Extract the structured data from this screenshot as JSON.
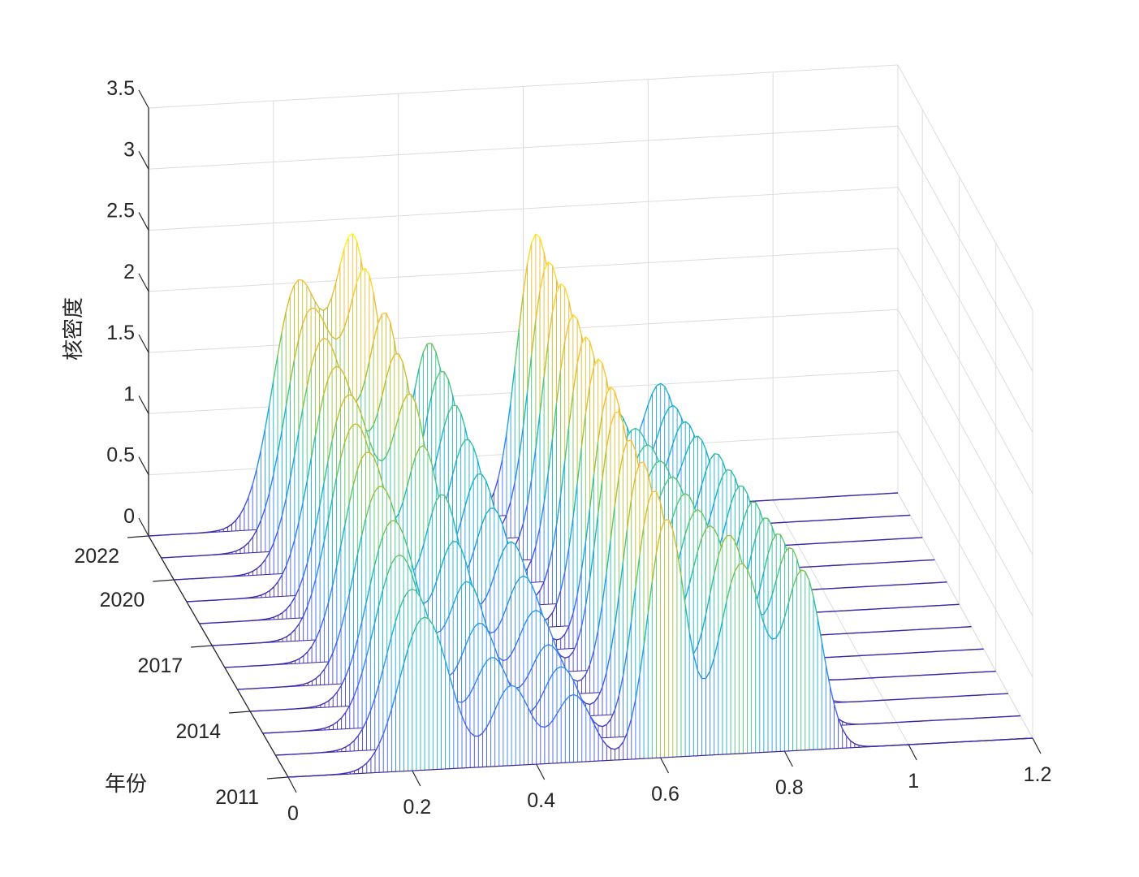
{
  "chart_data": {
    "type": "3d-surface",
    "style": "waterfall-mesh",
    "xlabel": "",
    "ylabel": "年份",
    "zlabel": "核密度",
    "xlim": [
      0,
      1.2
    ],
    "zlim": [
      0,
      3.5
    ],
    "x_ticks": [
      "0",
      "0.2",
      "0.4",
      "0.6",
      "0.8",
      "1",
      "1.2"
    ],
    "y_ticks": [
      "2011",
      "2014",
      "2017",
      "2020",
      "2022"
    ],
    "z_ticks": [
      "0",
      "0.5",
      "1",
      "1.5",
      "2",
      "2.5",
      "3",
      "3.5"
    ],
    "years": [
      2011,
      2012,
      2013,
      2014,
      2015,
      2016,
      2017,
      2018,
      2019,
      2020,
      2021,
      2022
    ],
    "kernel_components": [
      {
        "year": 2011,
        "peaks": [
          [
            0.22,
            0.04,
            1.25
          ],
          [
            0.36,
            0.03,
            0.65
          ],
          [
            0.46,
            0.03,
            0.55
          ],
          [
            0.61,
            0.03,
            1.95
          ],
          [
            0.73,
            0.035,
            1.55
          ],
          [
            0.83,
            0.03,
            1.45
          ]
        ]
      },
      {
        "year": 2012,
        "peaks": [
          [
            0.22,
            0.04,
            1.3
          ],
          [
            0.35,
            0.03,
            0.7
          ],
          [
            0.46,
            0.03,
            0.6
          ],
          [
            0.61,
            0.03,
            2.0
          ],
          [
            0.73,
            0.035,
            1.6
          ],
          [
            0.83,
            0.03,
            1.45
          ]
        ]
      },
      {
        "year": 2013,
        "peaks": [
          [
            0.22,
            0.04,
            1.4
          ],
          [
            0.35,
            0.03,
            0.8
          ],
          [
            0.46,
            0.03,
            0.6
          ],
          [
            0.61,
            0.03,
            2.05
          ],
          [
            0.72,
            0.035,
            1.5
          ],
          [
            0.83,
            0.03,
            1.4
          ]
        ]
      },
      {
        "year": 2014,
        "peaks": [
          [
            0.23,
            0.04,
            1.5
          ],
          [
            0.35,
            0.03,
            0.95
          ],
          [
            0.46,
            0.03,
            0.7
          ],
          [
            0.61,
            0.03,
            2.05
          ],
          [
            0.72,
            0.035,
            1.45
          ],
          [
            0.83,
            0.03,
            1.35
          ]
        ]
      },
      {
        "year": 2015,
        "peaks": [
          [
            0.23,
            0.04,
            1.6
          ],
          [
            0.35,
            0.03,
            1.1
          ],
          [
            0.46,
            0.03,
            0.8
          ],
          [
            0.61,
            0.03,
            2.1
          ],
          [
            0.72,
            0.035,
            1.4
          ],
          [
            0.83,
            0.03,
            1.3
          ]
        ]
      },
      {
        "year": 2016,
        "peaks": [
          [
            0.23,
            0.04,
            1.7
          ],
          [
            0.35,
            0.03,
            1.3
          ],
          [
            0.46,
            0.03,
            0.9
          ],
          [
            0.62,
            0.03,
            2.1
          ],
          [
            0.72,
            0.035,
            1.35
          ],
          [
            0.83,
            0.03,
            1.25
          ]
        ]
      },
      {
        "year": 2017,
        "peaks": [
          [
            0.23,
            0.04,
            1.75
          ],
          [
            0.34,
            0.03,
            1.5
          ],
          [
            0.45,
            0.03,
            1.0
          ],
          [
            0.62,
            0.03,
            2.15
          ],
          [
            0.72,
            0.035,
            1.3
          ],
          [
            0.83,
            0.03,
            1.2
          ]
        ]
      },
      {
        "year": 2018,
        "peaks": [
          [
            0.24,
            0.04,
            1.8
          ],
          [
            0.34,
            0.03,
            1.7
          ],
          [
            0.45,
            0.03,
            1.1
          ],
          [
            0.62,
            0.03,
            2.15
          ],
          [
            0.72,
            0.035,
            1.25
          ],
          [
            0.83,
            0.03,
            1.15
          ]
        ]
      },
      {
        "year": 2019,
        "peaks": [
          [
            0.24,
            0.04,
            1.85
          ],
          [
            0.34,
            0.03,
            1.85
          ],
          [
            0.45,
            0.03,
            1.2
          ],
          [
            0.62,
            0.03,
            2.15
          ],
          [
            0.72,
            0.035,
            1.2
          ],
          [
            0.82,
            0.03,
            1.1
          ]
        ]
      },
      {
        "year": 2020,
        "peaks": [
          [
            0.24,
            0.04,
            1.9
          ],
          [
            0.34,
            0.03,
            2.0
          ],
          [
            0.45,
            0.03,
            1.3
          ],
          [
            0.62,
            0.03,
            2.2
          ],
          [
            0.71,
            0.035,
            1.15
          ],
          [
            0.82,
            0.03,
            1.05
          ]
        ]
      },
      {
        "year": 2021,
        "peaks": [
          [
            0.24,
            0.04,
            1.95
          ],
          [
            0.33,
            0.03,
            2.1
          ],
          [
            0.45,
            0.03,
            1.4
          ],
          [
            0.62,
            0.03,
            2.2
          ],
          [
            0.71,
            0.035,
            1.1
          ],
          [
            0.82,
            0.03,
            1.0
          ]
        ]
      },
      {
        "year": 2022,
        "peaks": [
          [
            0.24,
            0.04,
            2.0
          ],
          [
            0.33,
            0.03,
            2.2
          ],
          [
            0.45,
            0.03,
            1.45
          ],
          [
            0.62,
            0.03,
            2.25
          ],
          [
            0.71,
            0.035,
            1.05
          ],
          [
            0.82,
            0.03,
            1.0
          ]
        ]
      }
    ],
    "colormap": [
      "#3e26a8",
      "#4367fd",
      "#2797eb",
      "#14b5c9",
      "#52c86d",
      "#c2be27",
      "#fdbb3a",
      "#f9fb0e"
    ],
    "grid": true,
    "legend": "none"
  }
}
